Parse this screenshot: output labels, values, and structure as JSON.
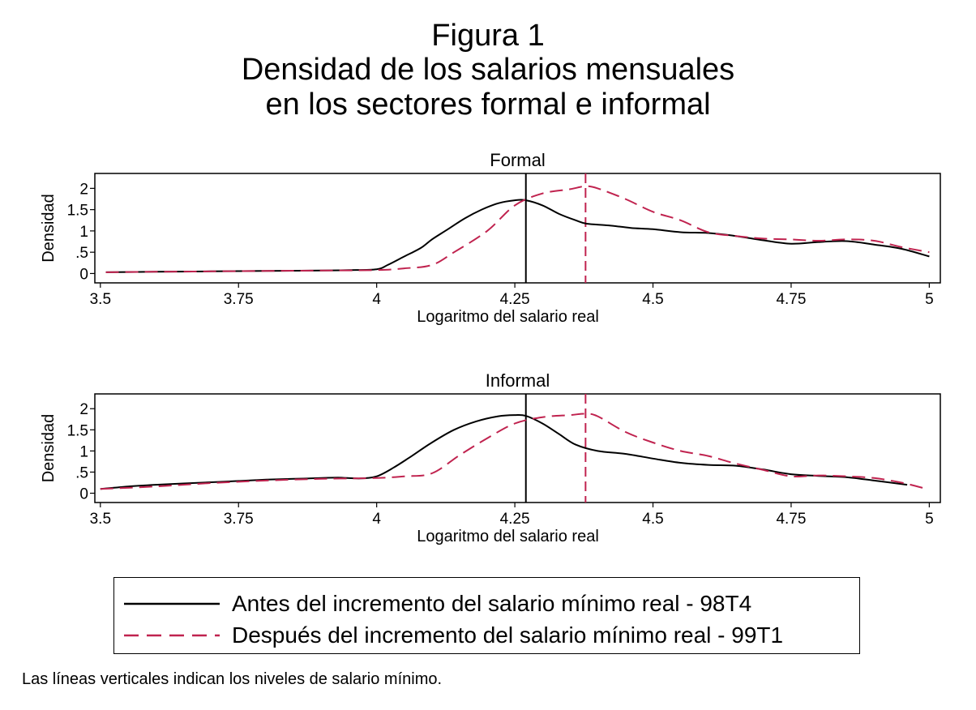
{
  "figure": {
    "title_line1": "Figura 1",
    "title_line2": "Densidad de los salarios mensuales",
    "title_line3": "en los sectores formal e informal",
    "note": "Las líneas verticales indican los niveles de salario mínimo."
  },
  "legend": {
    "items": [
      {
        "label": "Antes del incremento del salario mínimo real - 98T4",
        "color": "#000000",
        "dash": "solid"
      },
      {
        "label": "Después del incremento del salario mínimo real - 99T1",
        "color": "#c0234f",
        "dash": "dashed"
      }
    ]
  },
  "chart_data": [
    {
      "type": "line",
      "title": "Formal",
      "xlabel": "Logaritmo del salario real",
      "ylabel": "Densidad",
      "xlim": [
        3.49,
        5.02
      ],
      "ylim": [
        -0.22,
        2.35
      ],
      "xticks": [
        3.5,
        3.75,
        4,
        4.25,
        4.5,
        4.75,
        5
      ],
      "xtick_labels": [
        "3.5",
        "3.75",
        "4",
        "4.25",
        "4.5",
        "4.75",
        "5"
      ],
      "yticks": [
        0,
        0.5,
        1,
        1.5,
        2
      ],
      "ytick_labels": [
        "0",
        ".5",
        "1",
        "1.5",
        "2"
      ],
      "vlines": [
        {
          "x": 4.27,
          "series": 0
        },
        {
          "x": 4.378,
          "series": 1
        }
      ],
      "series": [
        {
          "name": "Antes del incremento del salario mínimo real - 98T4",
          "color": "#000000",
          "dash": "solid",
          "x": [
            3.51,
            3.6,
            3.7,
            3.8,
            3.9,
            3.95,
            4.0,
            4.02,
            4.05,
            4.08,
            4.1,
            4.13,
            4.16,
            4.19,
            4.22,
            4.25,
            4.27,
            4.3,
            4.33,
            4.36,
            4.38,
            4.42,
            4.46,
            4.5,
            4.55,
            4.6,
            4.65,
            4.7,
            4.75,
            4.8,
            4.85,
            4.9,
            4.95,
            5.0
          ],
          "y": [
            0.03,
            0.04,
            0.05,
            0.06,
            0.07,
            0.08,
            0.1,
            0.2,
            0.4,
            0.6,
            0.8,
            1.05,
            1.3,
            1.5,
            1.65,
            1.72,
            1.72,
            1.6,
            1.4,
            1.25,
            1.17,
            1.13,
            1.07,
            1.04,
            0.97,
            0.95,
            0.88,
            0.78,
            0.7,
            0.74,
            0.76,
            0.68,
            0.58,
            0.4
          ]
        },
        {
          "name": "Después del incremento del salario mínimo real - 99T1",
          "color": "#c0234f",
          "dash": "dashed",
          "x": [
            3.51,
            3.6,
            3.7,
            3.8,
            3.9,
            4.0,
            4.05,
            4.1,
            4.14,
            4.2,
            4.25,
            4.3,
            4.35,
            4.378,
            4.4,
            4.45,
            4.5,
            4.55,
            4.6,
            4.65,
            4.7,
            4.75,
            4.8,
            4.85,
            4.9,
            4.95,
            5.0
          ],
          "y": [
            0.03,
            0.04,
            0.05,
            0.06,
            0.07,
            0.08,
            0.12,
            0.2,
            0.5,
            1.0,
            1.6,
            1.88,
            1.98,
            2.05,
            2.0,
            1.75,
            1.45,
            1.25,
            0.97,
            0.88,
            0.82,
            0.8,
            0.77,
            0.8,
            0.77,
            0.62,
            0.5
          ]
        }
      ]
    },
    {
      "type": "line",
      "title": "Informal",
      "xlabel": "Logaritmo del salario real",
      "ylabel": "Densidad",
      "xlim": [
        3.49,
        5.02
      ],
      "ylim": [
        -0.22,
        2.35
      ],
      "xticks": [
        3.5,
        3.75,
        4,
        4.25,
        4.5,
        4.75,
        5
      ],
      "xtick_labels": [
        "3.5",
        "3.75",
        "4",
        "4.25",
        "4.5",
        "4.75",
        "5"
      ],
      "yticks": [
        0,
        0.5,
        1,
        1.5,
        2
      ],
      "ytick_labels": [
        "0",
        ".5",
        "1",
        "1.5",
        "2"
      ],
      "vlines": [
        {
          "x": 4.27,
          "series": 0
        },
        {
          "x": 4.378,
          "series": 1
        }
      ],
      "series": [
        {
          "name": "Antes del incremento del salario mínimo real - 98T4",
          "color": "#000000",
          "dash": "solid",
          "x": [
            3.5,
            3.55,
            3.6,
            3.65,
            3.7,
            3.75,
            3.8,
            3.85,
            3.9,
            3.93,
            3.97,
            4.0,
            4.03,
            4.06,
            4.1,
            4.14,
            4.18,
            4.22,
            4.25,
            4.27,
            4.3,
            4.33,
            4.36,
            4.4,
            4.45,
            4.5,
            4.55,
            4.6,
            4.65,
            4.7,
            4.75,
            4.8,
            4.85,
            4.9,
            4.96
          ],
          "y": [
            0.1,
            0.16,
            0.2,
            0.23,
            0.26,
            0.29,
            0.32,
            0.34,
            0.36,
            0.37,
            0.35,
            0.4,
            0.6,
            0.85,
            1.2,
            1.5,
            1.7,
            1.82,
            1.85,
            1.83,
            1.65,
            1.4,
            1.15,
            1.0,
            0.93,
            0.82,
            0.72,
            0.67,
            0.65,
            0.56,
            0.45,
            0.41,
            0.38,
            0.3,
            0.2
          ]
        },
        {
          "name": "Después del incremento del salario mínimo real - 99T1",
          "color": "#c0234f",
          "dash": "dashed",
          "x": [
            3.5,
            3.6,
            3.7,
            3.8,
            3.9,
            4.0,
            4.05,
            4.1,
            4.15,
            4.2,
            4.25,
            4.3,
            4.35,
            4.378,
            4.4,
            4.45,
            4.5,
            4.55,
            4.6,
            4.65,
            4.7,
            4.75,
            4.8,
            4.85,
            4.9,
            4.95,
            4.99
          ],
          "y": [
            0.1,
            0.16,
            0.24,
            0.3,
            0.34,
            0.36,
            0.4,
            0.47,
            0.9,
            1.3,
            1.65,
            1.8,
            1.85,
            1.88,
            1.82,
            1.45,
            1.2,
            1.0,
            0.88,
            0.7,
            0.55,
            0.4,
            0.42,
            0.4,
            0.36,
            0.25,
            0.12
          ]
        }
      ]
    }
  ]
}
